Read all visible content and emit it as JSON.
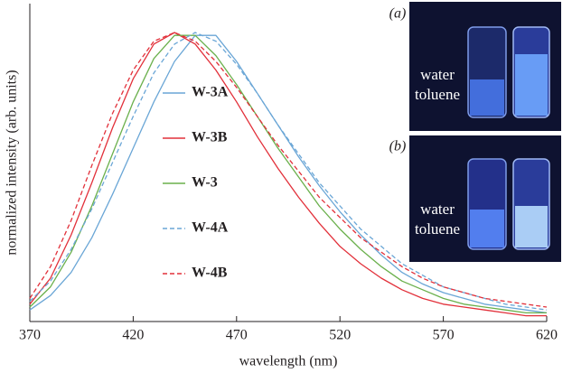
{
  "chart_data": {
    "type": "line",
    "x_label": "wavelength (nm)",
    "y_label": "normalized intensity (arb. units)",
    "x": [
      370,
      380,
      390,
      400,
      410,
      420,
      430,
      440,
      450,
      460,
      470,
      480,
      490,
      500,
      510,
      520,
      530,
      540,
      550,
      560,
      570,
      580,
      590,
      600,
      610,
      620
    ],
    "series": [
      {
        "name": "W-3A",
        "color": "#6aa6d6",
        "dash": false,
        "values": [
          0.04,
          0.09,
          0.17,
          0.29,
          0.44,
          0.6,
          0.76,
          0.9,
          0.99,
          0.99,
          0.9,
          0.79,
          0.68,
          0.57,
          0.47,
          0.38,
          0.3,
          0.23,
          0.17,
          0.13,
          0.1,
          0.08,
          0.06,
          0.05,
          0.04,
          0.03
        ]
      },
      {
        "name": "W-3B",
        "color": "#e2303a",
        "dash": false,
        "values": [
          0.06,
          0.15,
          0.3,
          0.48,
          0.67,
          0.84,
          0.96,
          1.0,
          0.96,
          0.87,
          0.76,
          0.64,
          0.53,
          0.43,
          0.34,
          0.26,
          0.2,
          0.15,
          0.11,
          0.08,
          0.06,
          0.05,
          0.04,
          0.03,
          0.02,
          0.02
        ]
      },
      {
        "name": "W-3",
        "color": "#6ab04c",
        "dash": false,
        "values": [
          0.05,
          0.12,
          0.24,
          0.4,
          0.58,
          0.76,
          0.91,
          0.99,
          0.99,
          0.92,
          0.82,
          0.71,
          0.6,
          0.5,
          0.4,
          0.32,
          0.25,
          0.19,
          0.14,
          0.11,
          0.08,
          0.06,
          0.05,
          0.04,
          0.03,
          0.03
        ]
      },
      {
        "name": "W-4A",
        "color": "#6aa6d6",
        "dash": true,
        "values": [
          0.07,
          0.14,
          0.25,
          0.39,
          0.55,
          0.71,
          0.86,
          0.96,
          1.0,
          0.97,
          0.89,
          0.79,
          0.68,
          0.58,
          0.48,
          0.4,
          0.32,
          0.26,
          0.2,
          0.16,
          0.12,
          0.1,
          0.08,
          0.06,
          0.05,
          0.04
        ]
      },
      {
        "name": "W-4B",
        "color": "#e2303a",
        "dash": true,
        "values": [
          0.08,
          0.19,
          0.35,
          0.54,
          0.72,
          0.87,
          0.97,
          1.0,
          0.97,
          0.9,
          0.81,
          0.71,
          0.61,
          0.52,
          0.43,
          0.36,
          0.29,
          0.24,
          0.19,
          0.15,
          0.12,
          0.1,
          0.08,
          0.07,
          0.06,
          0.05
        ]
      }
    ],
    "xlim": [
      370,
      620
    ],
    "xticks": [
      370,
      420,
      470,
      520,
      570,
      620
    ],
    "ylim": [
      0,
      1.1
    ],
    "insets": [
      {
        "label": "(a)",
        "lines": [
          "water",
          "toluene"
        ]
      },
      {
        "label": "(b)",
        "lines": [
          "water",
          "toluene"
        ]
      }
    ]
  }
}
